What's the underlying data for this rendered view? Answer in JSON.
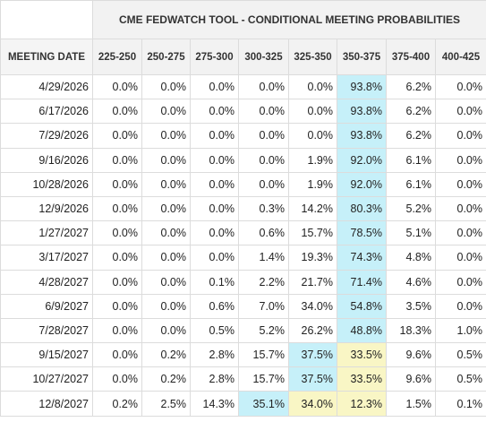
{
  "title": "CME FEDWATCH TOOL - CONDITIONAL MEETING PROBABILITIES",
  "columns": [
    "MEETING DATE",
    "225-250",
    "250-275",
    "275-300",
    "300-325",
    "325-350",
    "350-375",
    "375-400",
    "400-425"
  ],
  "highlight_colors": {
    "blue": "#c6f0f9",
    "yellow": "#f9f6c5"
  },
  "rows": [
    {
      "date": "4/29/2026",
      "values": [
        "0.0%",
        "0.0%",
        "0.0%",
        "0.0%",
        "0.0%",
        "93.8%",
        "6.2%",
        "0.0%"
      ],
      "hl": [
        "",
        "",
        "",
        "",
        "",
        "blue",
        "",
        ""
      ]
    },
    {
      "date": "6/17/2026",
      "values": [
        "0.0%",
        "0.0%",
        "0.0%",
        "0.0%",
        "0.0%",
        "93.8%",
        "6.2%",
        "0.0%"
      ],
      "hl": [
        "",
        "",
        "",
        "",
        "",
        "blue",
        "",
        ""
      ]
    },
    {
      "date": "7/29/2026",
      "values": [
        "0.0%",
        "0.0%",
        "0.0%",
        "0.0%",
        "0.0%",
        "93.8%",
        "6.2%",
        "0.0%"
      ],
      "hl": [
        "",
        "",
        "",
        "",
        "",
        "blue",
        "",
        ""
      ]
    },
    {
      "date": "9/16/2026",
      "values": [
        "0.0%",
        "0.0%",
        "0.0%",
        "0.0%",
        "1.9%",
        "92.0%",
        "6.1%",
        "0.0%"
      ],
      "hl": [
        "",
        "",
        "",
        "",
        "",
        "blue",
        "",
        ""
      ]
    },
    {
      "date": "10/28/2026",
      "values": [
        "0.0%",
        "0.0%",
        "0.0%",
        "0.0%",
        "1.9%",
        "92.0%",
        "6.1%",
        "0.0%"
      ],
      "hl": [
        "",
        "",
        "",
        "",
        "",
        "blue",
        "",
        ""
      ]
    },
    {
      "date": "12/9/2026",
      "values": [
        "0.0%",
        "0.0%",
        "0.0%",
        "0.3%",
        "14.2%",
        "80.3%",
        "5.2%",
        "0.0%"
      ],
      "hl": [
        "",
        "",
        "",
        "",
        "",
        "blue",
        "",
        ""
      ]
    },
    {
      "date": "1/27/2027",
      "values": [
        "0.0%",
        "0.0%",
        "0.0%",
        "0.6%",
        "15.7%",
        "78.5%",
        "5.1%",
        "0.0%"
      ],
      "hl": [
        "",
        "",
        "",
        "",
        "",
        "blue",
        "",
        ""
      ]
    },
    {
      "date": "3/17/2027",
      "values": [
        "0.0%",
        "0.0%",
        "0.0%",
        "1.4%",
        "19.3%",
        "74.3%",
        "4.8%",
        "0.0%"
      ],
      "hl": [
        "",
        "",
        "",
        "",
        "",
        "blue",
        "",
        ""
      ]
    },
    {
      "date": "4/28/2027",
      "values": [
        "0.0%",
        "0.0%",
        "0.1%",
        "2.2%",
        "21.7%",
        "71.4%",
        "4.6%",
        "0.0%"
      ],
      "hl": [
        "",
        "",
        "",
        "",
        "",
        "blue",
        "",
        ""
      ]
    },
    {
      "date": "6/9/2027",
      "values": [
        "0.0%",
        "0.0%",
        "0.6%",
        "7.0%",
        "34.0%",
        "54.8%",
        "3.5%",
        "0.0%"
      ],
      "hl": [
        "",
        "",
        "",
        "",
        "",
        "blue",
        "",
        ""
      ]
    },
    {
      "date": "7/28/2027",
      "values": [
        "0.0%",
        "0.0%",
        "0.5%",
        "5.2%",
        "26.2%",
        "48.8%",
        "18.3%",
        "1.0%"
      ],
      "hl": [
        "",
        "",
        "",
        "",
        "",
        "blue",
        "",
        ""
      ]
    },
    {
      "date": "9/15/2027",
      "values": [
        "0.0%",
        "0.2%",
        "2.8%",
        "15.7%",
        "37.5%",
        "33.5%",
        "9.6%",
        "0.5%"
      ],
      "hl": [
        "",
        "",
        "",
        "",
        "blue",
        "yellow",
        "",
        ""
      ]
    },
    {
      "date": "10/27/2027",
      "values": [
        "0.0%",
        "0.2%",
        "2.8%",
        "15.7%",
        "37.5%",
        "33.5%",
        "9.6%",
        "0.5%"
      ],
      "hl": [
        "",
        "",
        "",
        "",
        "blue",
        "yellow",
        "",
        ""
      ]
    },
    {
      "date": "12/8/2027",
      "values": [
        "0.2%",
        "2.5%",
        "14.3%",
        "35.1%",
        "34.0%",
        "12.3%",
        "1.5%",
        "0.1%"
      ],
      "hl": [
        "",
        "",
        "",
        "blue",
        "yellow",
        "yellow",
        "",
        ""
      ]
    }
  ]
}
